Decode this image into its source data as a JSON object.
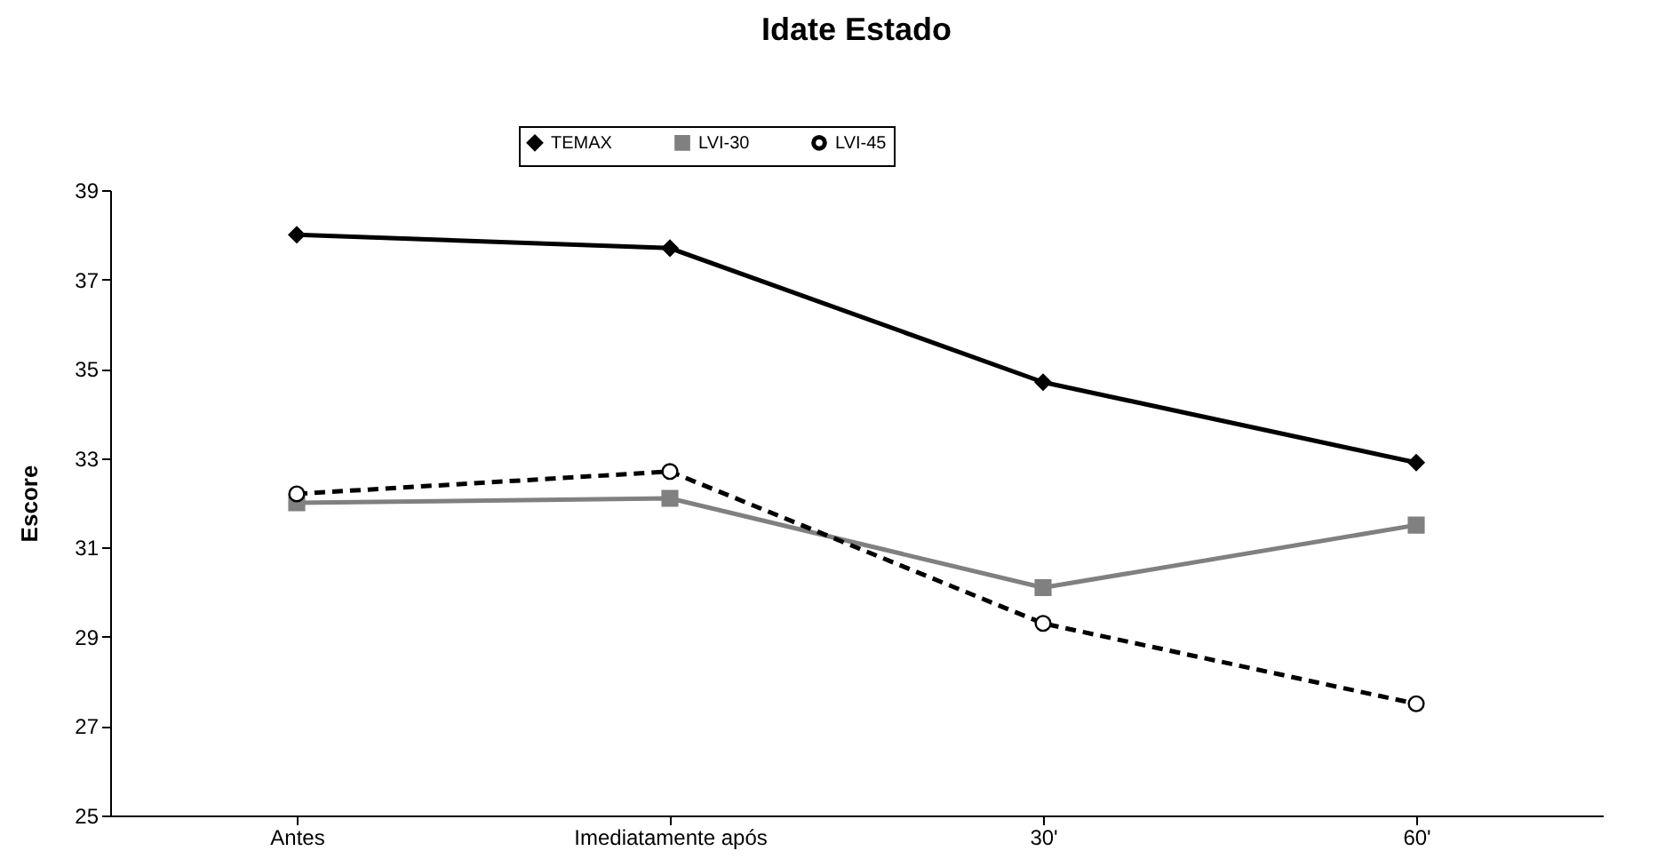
{
  "chart_data": {
    "type": "line",
    "title": "Idate Estado",
    "ylabel": "Escore",
    "categories": [
      "Antes",
      "Imediatamente após",
      "30'",
      "60'"
    ],
    "ylim": [
      25,
      39
    ],
    "yticks": [
      25,
      27,
      29,
      31,
      33,
      35,
      37,
      39
    ],
    "grid": false,
    "legend": "top",
    "series": [
      {
        "name": "TEMAX",
        "color": "#000000",
        "marker": "diamond",
        "line_style": "solid",
        "values": [
          38.0,
          37.7,
          34.7,
          32.9
        ]
      },
      {
        "name": "LVI-30",
        "color": "#808080",
        "marker": "square",
        "line_style": "solid",
        "values": [
          32.0,
          32.1,
          30.1,
          31.5
        ]
      },
      {
        "name": "LVI-45",
        "color": "#000000",
        "marker": "circle",
        "line_style": "dashed",
        "values": [
          32.2,
          32.7,
          29.3,
          27.5
        ]
      }
    ]
  }
}
